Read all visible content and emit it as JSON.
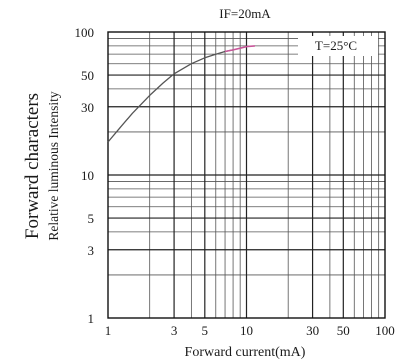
{
  "chart_data": {
    "type": "line",
    "title": "IF=20mA",
    "annotation": "T=25°C",
    "ylabel_outer": "Forward characters",
    "ylabel_inner": "Relative luminous Intensity",
    "xlabel": "Forward current(mA)",
    "x_scale": "log",
    "y_scale": "log",
    "xlim": [
      1,
      100
    ],
    "ylim": [
      1,
      100
    ],
    "x_ticks": [
      1,
      3,
      5,
      10,
      30,
      50,
      100
    ],
    "x_tick_labels": [
      "1",
      "3",
      "5",
      "10",
      "30",
      "50",
      "100"
    ],
    "y_ticks": [
      1,
      3,
      5,
      10,
      30,
      50,
      100
    ],
    "y_tick_labels": [
      "1",
      "3",
      "5",
      "10",
      "30",
      "50",
      "100"
    ],
    "grid": true,
    "series": [
      {
        "color": "#555555",
        "x": [
          1,
          1.2,
          1.5,
          2,
          2.5,
          3,
          4,
          5,
          6,
          7,
          8
        ],
        "y": [
          17,
          21,
          27,
          36,
          44,
          51,
          60,
          66,
          70,
          73,
          75
        ]
      },
      {
        "color": "#c8579a",
        "x": [
          7,
          8,
          9,
          10,
          11.5
        ],
        "y": [
          73,
          75,
          77,
          79,
          80
        ]
      }
    ]
  }
}
